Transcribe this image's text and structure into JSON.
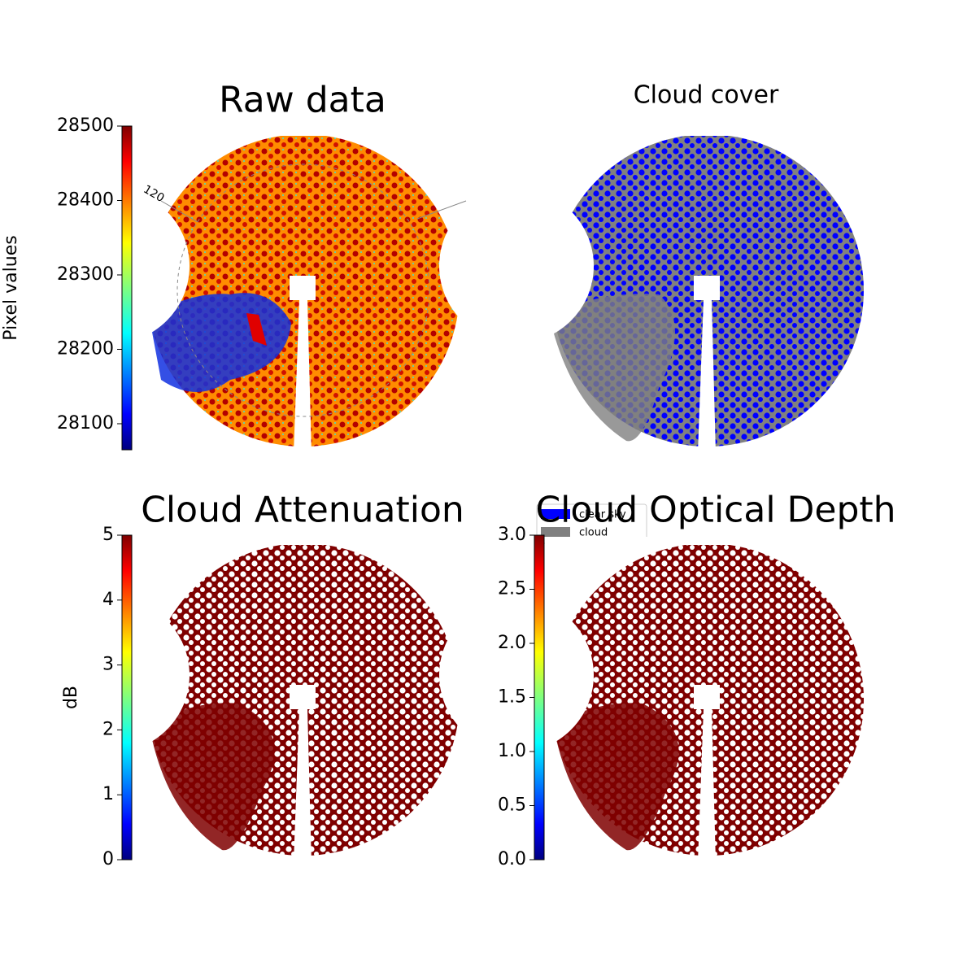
{
  "chart_data": [
    {
      "type": "image",
      "title": "Raw data",
      "colorbar": {
        "label": "Pixel values",
        "lim": [
          28065,
          28500
        ],
        "ticks": [
          28100,
          28200,
          28300,
          28400,
          28500
        ]
      },
      "annotations": [
        "120"
      ]
    },
    {
      "type": "image",
      "title": "Cloud cover",
      "legend": [
        {
          "name": "clear sky",
          "color": "#0000ff"
        },
        {
          "name": "cloud",
          "color": "#808080"
        }
      ]
    },
    {
      "type": "image",
      "title": "Cloud Attenuation",
      "colorbar": {
        "label": "dB",
        "lim": [
          0,
          5
        ],
        "ticks": [
          0,
          1,
          2,
          3,
          4,
          5
        ]
      }
    },
    {
      "type": "image",
      "title": "Cloud Optical Depth",
      "colorbar": {
        "lim": [
          0,
          3
        ],
        "ticks": [
          {
            "value": 0,
            "label": "0.0"
          },
          0.5,
          {
            "value": 1,
            "label": "1.0"
          },
          1.5,
          {
            "value": 2,
            "label": "2.0"
          },
          2.5,
          {
            "value": 3,
            "label": "3.0"
          }
        ]
      }
    }
  ]
}
